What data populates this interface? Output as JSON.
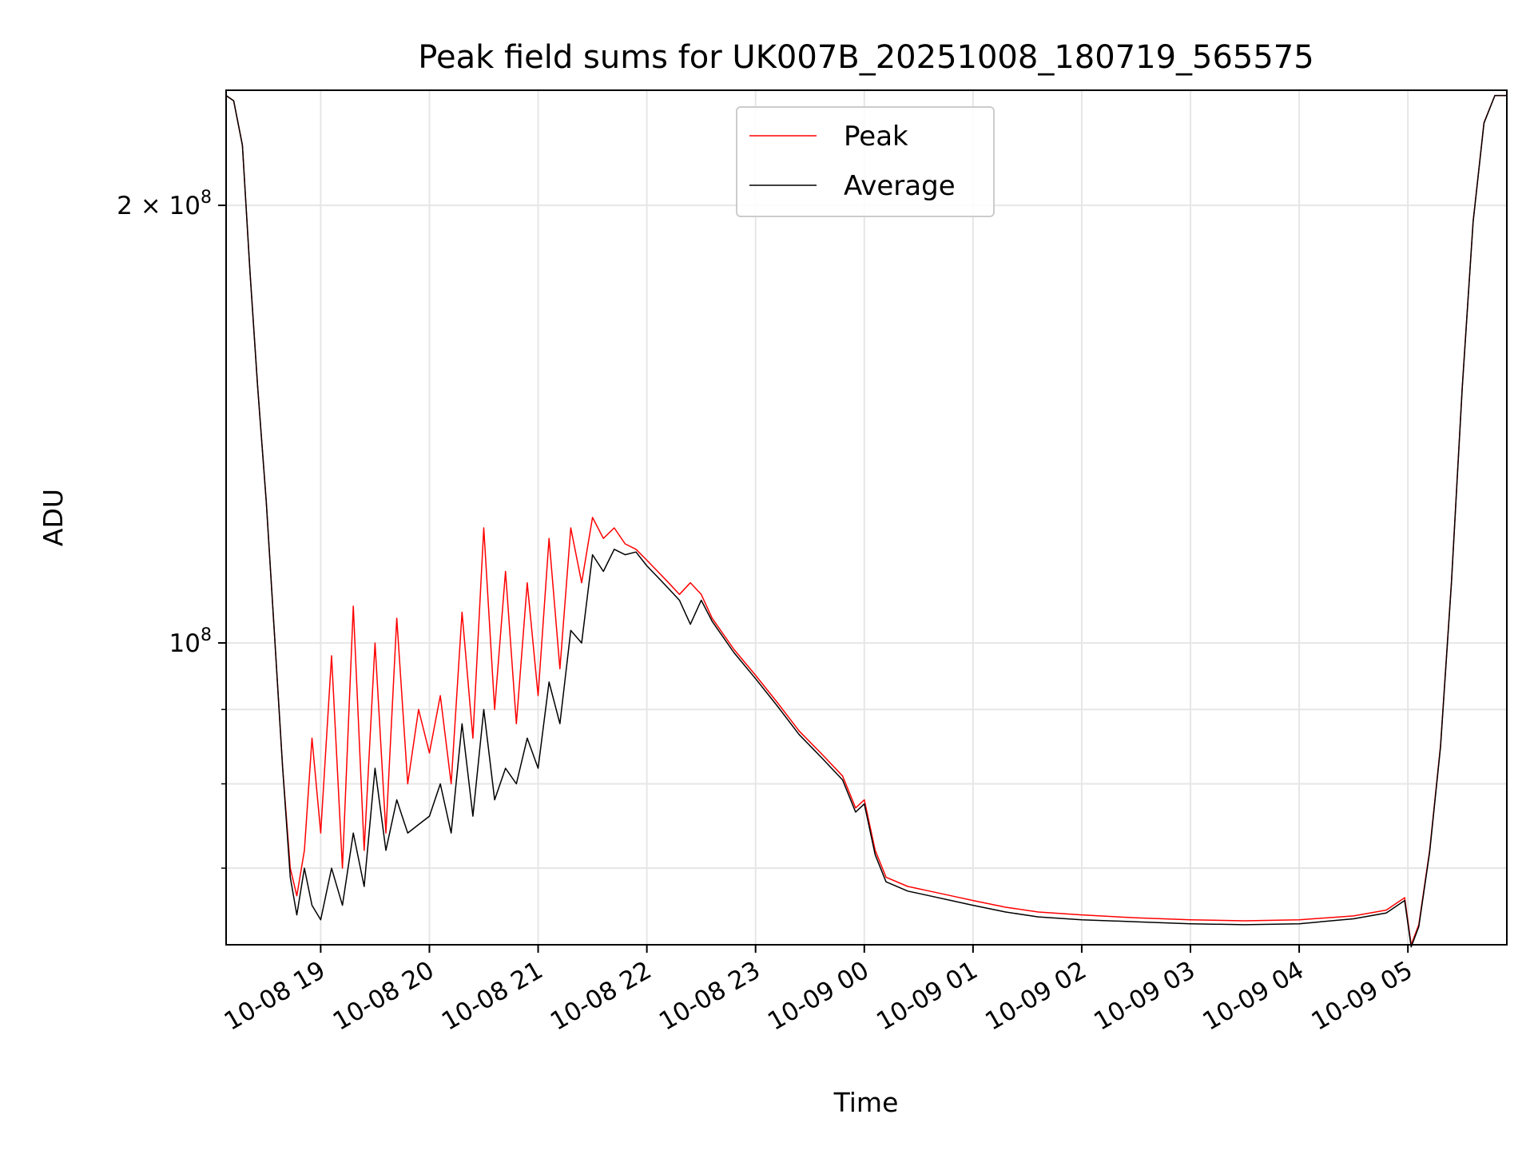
{
  "chart_data": {
    "type": "line",
    "title": "Peak field sums for UK007B_20251008_180719_565575",
    "xlabel": "Time",
    "ylabel": "ADU",
    "y_scale": "log",
    "ylim": [
      62000000,
      240000000
    ],
    "xlim_hours": [
      18.13,
      29.91
    ],
    "x_unit": "hours since 10-08 00:00",
    "grid": true,
    "legend_position": "top-center",
    "x_ticks": [
      {
        "value": 19,
        "label": "10-08 19"
      },
      {
        "value": 20,
        "label": "10-08 20"
      },
      {
        "value": 21,
        "label": "10-08 21"
      },
      {
        "value": 22,
        "label": "10-08 22"
      },
      {
        "value": 23,
        "label": "10-08 23"
      },
      {
        "value": 24,
        "label": "10-09 00"
      },
      {
        "value": 25,
        "label": "10-09 01"
      },
      {
        "value": 26,
        "label": "10-09 02"
      },
      {
        "value": 27,
        "label": "10-09 03"
      },
      {
        "value": 28,
        "label": "10-09 04"
      },
      {
        "value": 29,
        "label": "10-09 05"
      }
    ],
    "y_major_ticks": [
      {
        "value": 100000000,
        "base": "10",
        "exp": "8",
        "mantissa": ""
      },
      {
        "value": 200000000,
        "base": "10",
        "exp": "8",
        "mantissa": "2 × "
      }
    ],
    "y_minor_ticks": [
      70000000,
      80000000,
      90000000
    ],
    "series": [
      {
        "name": "Peak",
        "color": "#ff0000",
        "points": [
          [
            18.13,
            238000000
          ],
          [
            18.2,
            236000000
          ],
          [
            18.28,
            220000000
          ],
          [
            18.35,
            180000000
          ],
          [
            18.42,
            150000000
          ],
          [
            18.5,
            125000000
          ],
          [
            18.58,
            100000000
          ],
          [
            18.65,
            82000000
          ],
          [
            18.72,
            70000000
          ],
          [
            18.78,
            67000000
          ],
          [
            18.85,
            72000000
          ],
          [
            18.92,
            86000000
          ],
          [
            19.0,
            74000000
          ],
          [
            19.1,
            98000000
          ],
          [
            19.2,
            70000000
          ],
          [
            19.3,
            106000000
          ],
          [
            19.4,
            72000000
          ],
          [
            19.5,
            100000000
          ],
          [
            19.6,
            74000000
          ],
          [
            19.7,
            104000000
          ],
          [
            19.8,
            80000000
          ],
          [
            19.9,
            90000000
          ],
          [
            20.0,
            84000000
          ],
          [
            20.1,
            92000000
          ],
          [
            20.2,
            80000000
          ],
          [
            20.3,
            105000000
          ],
          [
            20.4,
            86000000
          ],
          [
            20.5,
            120000000
          ],
          [
            20.6,
            90000000
          ],
          [
            20.7,
            112000000
          ],
          [
            20.8,
            88000000
          ],
          [
            20.9,
            110000000
          ],
          [
            21.0,
            92000000
          ],
          [
            21.1,
            118000000
          ],
          [
            21.2,
            96000000
          ],
          [
            21.3,
            120000000
          ],
          [
            21.4,
            110000000
          ],
          [
            21.5,
            122000000
          ],
          [
            21.6,
            118000000
          ],
          [
            21.7,
            120000000
          ],
          [
            21.8,
            117000000
          ],
          [
            21.9,
            116000000
          ],
          [
            22.0,
            114000000
          ],
          [
            22.1,
            112000000
          ],
          [
            22.2,
            110000000
          ],
          [
            22.3,
            108000000
          ],
          [
            22.4,
            110000000
          ],
          [
            22.5,
            108000000
          ],
          [
            22.6,
            104000000
          ],
          [
            22.8,
            99000000
          ],
          [
            23.0,
            95000000
          ],
          [
            23.2,
            91000000
          ],
          [
            23.4,
            87000000
          ],
          [
            23.6,
            84000000
          ],
          [
            23.8,
            81000000
          ],
          [
            23.92,
            77000000
          ],
          [
            24.0,
            78000000
          ],
          [
            24.1,
            72000000
          ],
          [
            24.2,
            69000000
          ],
          [
            24.4,
            68000000
          ],
          [
            24.6,
            67500000
          ],
          [
            24.8,
            67000000
          ],
          [
            25.0,
            66500000
          ],
          [
            25.3,
            65800000
          ],
          [
            25.6,
            65300000
          ],
          [
            26.0,
            65000000
          ],
          [
            26.5,
            64700000
          ],
          [
            27.0,
            64500000
          ],
          [
            27.5,
            64400000
          ],
          [
            28.0,
            64500000
          ],
          [
            28.5,
            64900000
          ],
          [
            28.8,
            65500000
          ],
          [
            28.97,
            66800000
          ],
          [
            29.03,
            62000000
          ],
          [
            29.1,
            64000000
          ],
          [
            29.2,
            72000000
          ],
          [
            29.3,
            85000000
          ],
          [
            29.4,
            110000000
          ],
          [
            29.5,
            150000000
          ],
          [
            29.6,
            195000000
          ],
          [
            29.7,
            228000000
          ],
          [
            29.8,
            238000000
          ],
          [
            29.91,
            238000000
          ]
        ]
      },
      {
        "name": "Average",
        "color": "#000000",
        "points": [
          [
            18.13,
            238000000
          ],
          [
            18.2,
            236000000
          ],
          [
            18.28,
            220000000
          ],
          [
            18.35,
            180000000
          ],
          [
            18.42,
            150000000
          ],
          [
            18.5,
            125000000
          ],
          [
            18.58,
            100000000
          ],
          [
            18.65,
            82000000
          ],
          [
            18.72,
            69000000
          ],
          [
            18.78,
            65000000
          ],
          [
            18.85,
            70000000
          ],
          [
            18.92,
            66000000
          ],
          [
            19.0,
            64500000
          ],
          [
            19.1,
            70000000
          ],
          [
            19.2,
            66000000
          ],
          [
            19.3,
            74000000
          ],
          [
            19.4,
            68000000
          ],
          [
            19.5,
            82000000
          ],
          [
            19.6,
            72000000
          ],
          [
            19.7,
            78000000
          ],
          [
            19.8,
            74000000
          ],
          [
            19.9,
            75000000
          ],
          [
            20.0,
            76000000
          ],
          [
            20.1,
            80000000
          ],
          [
            20.2,
            74000000
          ],
          [
            20.3,
            88000000
          ],
          [
            20.4,
            76000000
          ],
          [
            20.5,
            90000000
          ],
          [
            20.6,
            78000000
          ],
          [
            20.7,
            82000000
          ],
          [
            20.8,
            80000000
          ],
          [
            20.9,
            86000000
          ],
          [
            21.0,
            82000000
          ],
          [
            21.1,
            94000000
          ],
          [
            21.2,
            88000000
          ],
          [
            21.3,
            102000000
          ],
          [
            21.4,
            100000000
          ],
          [
            21.5,
            115000000
          ],
          [
            21.6,
            112000000
          ],
          [
            21.7,
            116000000
          ],
          [
            21.8,
            115000000
          ],
          [
            21.9,
            115500000
          ],
          [
            22.0,
            113000000
          ],
          [
            22.1,
            111000000
          ],
          [
            22.2,
            109000000
          ],
          [
            22.3,
            107000000
          ],
          [
            22.4,
            103000000
          ],
          [
            22.5,
            107000000
          ],
          [
            22.6,
            103500000
          ],
          [
            22.8,
            98500000
          ],
          [
            23.0,
            94500000
          ],
          [
            23.2,
            90500000
          ],
          [
            23.4,
            86500000
          ],
          [
            23.6,
            83500000
          ],
          [
            23.8,
            80500000
          ],
          [
            23.92,
            76500000
          ],
          [
            24.0,
            77500000
          ],
          [
            24.1,
            71500000
          ],
          [
            24.2,
            68500000
          ],
          [
            24.4,
            67500000
          ],
          [
            24.6,
            67000000
          ],
          [
            24.8,
            66500000
          ],
          [
            25.0,
            66000000
          ],
          [
            25.3,
            65300000
          ],
          [
            25.6,
            64800000
          ],
          [
            26.0,
            64500000
          ],
          [
            26.5,
            64300000
          ],
          [
            27.0,
            64100000
          ],
          [
            27.5,
            64000000
          ],
          [
            28.0,
            64100000
          ],
          [
            28.5,
            64600000
          ],
          [
            28.8,
            65200000
          ],
          [
            28.97,
            66500000
          ],
          [
            29.03,
            61800000
          ],
          [
            29.1,
            63800000
          ],
          [
            29.2,
            71800000
          ],
          [
            29.3,
            84800000
          ],
          [
            29.4,
            109800000
          ],
          [
            29.5,
            149800000
          ],
          [
            29.6,
            194800000
          ],
          [
            29.7,
            227800000
          ],
          [
            29.8,
            238000000
          ],
          [
            29.91,
            238000000
          ]
        ]
      }
    ]
  }
}
